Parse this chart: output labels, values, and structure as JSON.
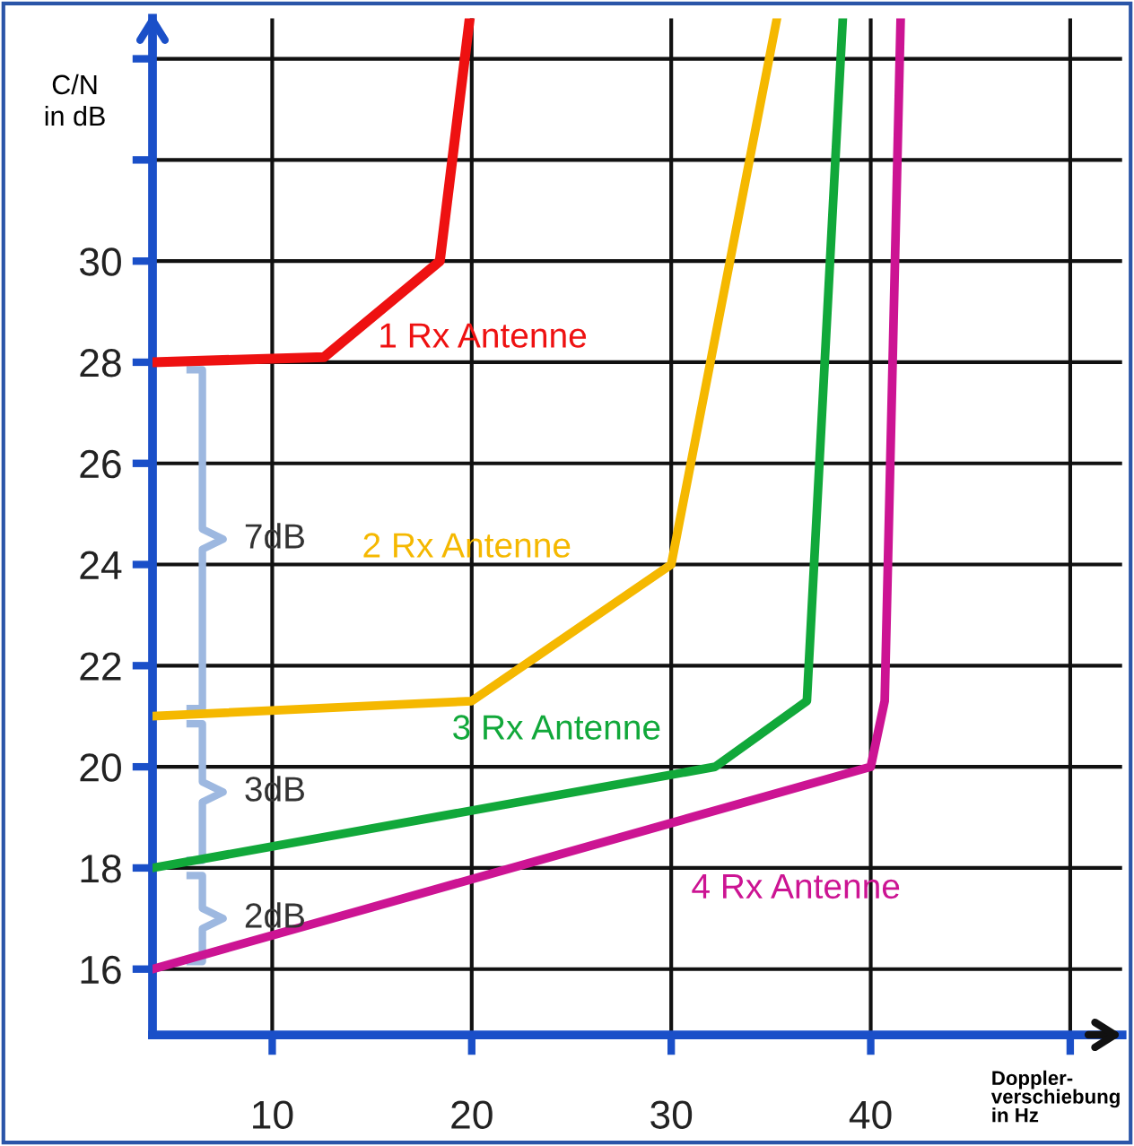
{
  "chart_data": {
    "type": "line",
    "xlabel": "Doppler-\nverschiebung\nin Hz",
    "ylabel": "C/N\nin dB",
    "series": [
      {
        "name": "1 Rx Antenne",
        "color": "#ee1111",
        "x": [
          4,
          12.6,
          18.4,
          19.9
        ],
        "values": [
          28,
          28.1,
          30,
          34.8
        ]
      },
      {
        "name": "2 Rx Antenne",
        "color": "#f5b800",
        "x": [
          4,
          20,
          30,
          35.3
        ],
        "values": [
          21,
          21.3,
          24,
          34.8
        ]
      },
      {
        "name": "3 Rx Antenne",
        "color": "#11a83a",
        "x": [
          4,
          32.2,
          36.8,
          38.6
        ],
        "values": [
          18,
          20,
          21.3,
          34.8
        ]
      },
      {
        "name": "4 Rx Antenne",
        "color": "#cc1493",
        "x": [
          4,
          40,
          40.7,
          41.5
        ],
        "values": [
          16,
          20,
          21.3,
          34.8
        ]
      }
    ],
    "annotations": [
      "7dB",
      "3dB",
      "2dB"
    ],
    "xlim": [
      4,
      52.6
    ],
    "ylim": [
      14.7,
      34.8
    ],
    "xticks": [
      10,
      20,
      30,
      40,
      {
        "value": 50,
        "label": null
      }
    ],
    "yticks": [
      16,
      18,
      20,
      22,
      24,
      26,
      28,
      30,
      {
        "value": 32,
        "label": null
      },
      {
        "value": 34,
        "label": null
      }
    ],
    "grid": true,
    "legend": false,
    "marker": "none",
    "line_style": "solid"
  }
}
